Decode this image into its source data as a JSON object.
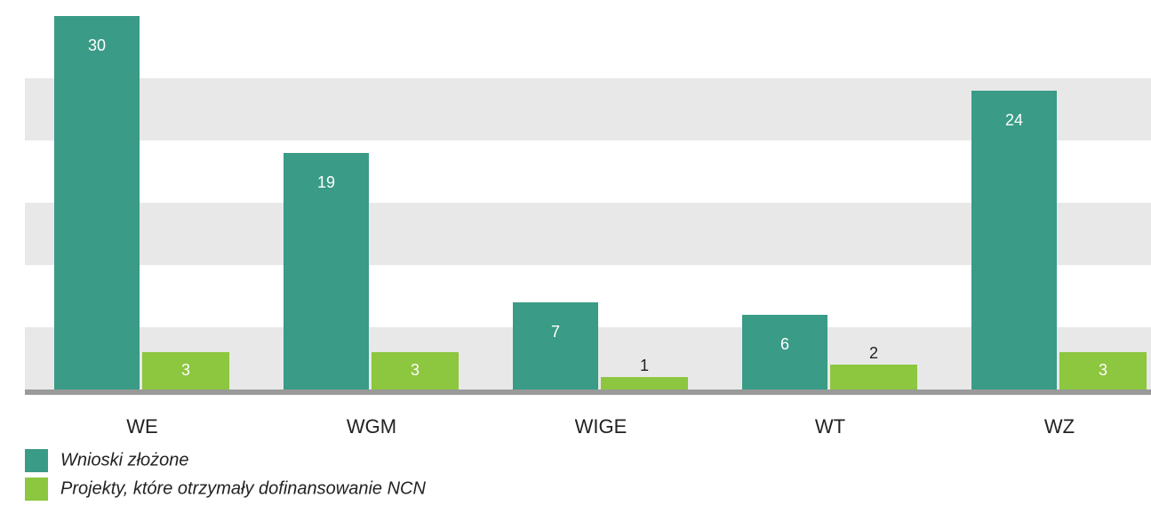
{
  "chart_data": {
    "type": "bar",
    "categories": [
      "WE",
      "WGM",
      "WIGE",
      "WT",
      "WZ"
    ],
    "series": [
      {
        "name": "Wnioski złożone",
        "color": "#3a9b86",
        "values": [
          30,
          19,
          7,
          6,
          24
        ]
      },
      {
        "name": "Projekty, które otrzymały dofinansowanie NCN",
        "color": "#8dc63f",
        "values": [
          3,
          3,
          1,
          2,
          3
        ]
      }
    ],
    "ylim": [
      0,
      30
    ],
    "yticks": [
      0,
      5,
      10,
      15,
      20,
      25,
      30
    ],
    "grid": true
  }
}
